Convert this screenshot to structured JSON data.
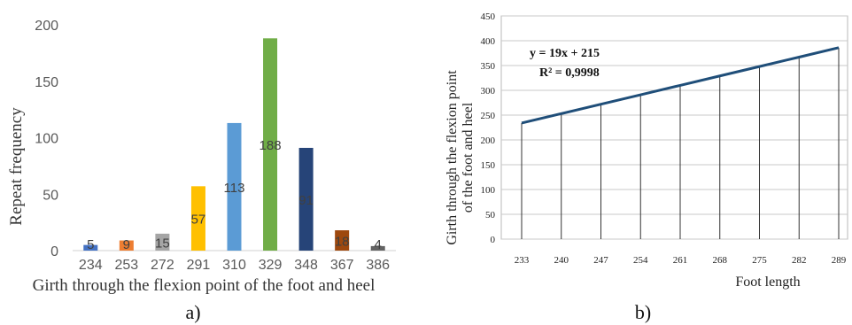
{
  "chart_data": [
    {
      "type": "bar",
      "panel_label": "a)",
      "xlabel": "Girth through the flexion point of the foot and heel",
      "ylabel": "Repeat frequency",
      "categories": [
        "234",
        "253",
        "272",
        "291",
        "310",
        "329",
        "348",
        "367",
        "386"
      ],
      "values": [
        5,
        9,
        15,
        57,
        113,
        188,
        91,
        18,
        4
      ],
      "colors": [
        "#4472C4",
        "#ED7D31",
        "#A5A5A5",
        "#FFC000",
        "#5B9BD5",
        "#70AD47",
        "#264478",
        "#9E480E",
        "#636363"
      ],
      "ylim": [
        0,
        200
      ],
      "yticks": [
        "0",
        "50",
        "100",
        "150",
        "200"
      ],
      "grid": false
    },
    {
      "type": "line",
      "panel_label": "b)",
      "xlabel": "Foot length",
      "ylabel": "Girth through the flexion point of the foot and heel",
      "x": [
        "233",
        "240",
        "247",
        "254",
        "261",
        "268",
        "275",
        "282",
        "289"
      ],
      "y": [
        234,
        253,
        272,
        291,
        310,
        329,
        348,
        367,
        386
      ],
      "ylim": [
        0,
        450
      ],
      "yticks": [
        "0",
        "50",
        "100",
        "150",
        "200",
        "250",
        "300",
        "350",
        "400",
        "450"
      ],
      "line_color": "#1F4E79",
      "annotations": [
        "y = 19x + 215",
        "R² = 0,9998"
      ],
      "drop_lines": true
    }
  ]
}
